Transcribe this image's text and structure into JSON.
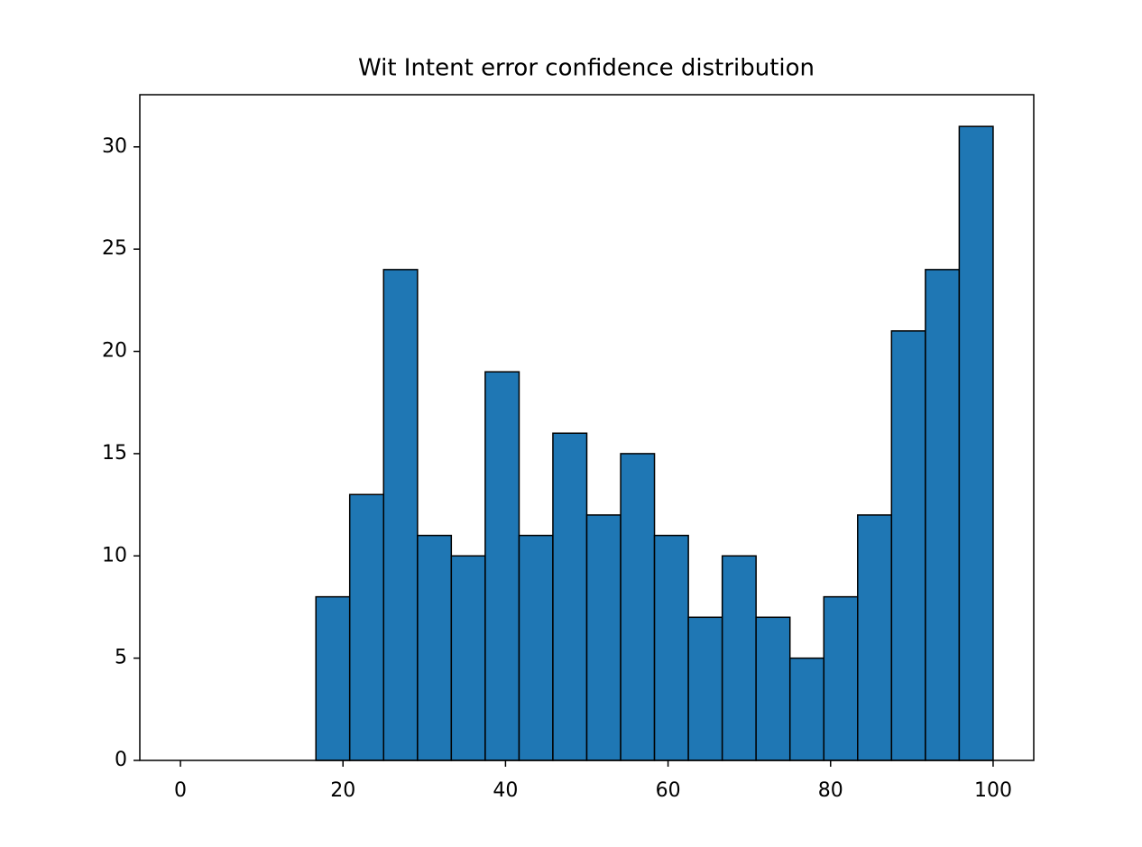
{
  "chart_data": {
    "type": "histogram",
    "title": "Wit Intent error confidence distribution",
    "bins": [
      0,
      4.17,
      8.33,
      12.5,
      16.67,
      20.83,
      25,
      29.17,
      33.33,
      37.5,
      41.67,
      45.83,
      50,
      54.17,
      58.33,
      62.5,
      66.67,
      70.83,
      75,
      79.17,
      83.33,
      87.5,
      91.67,
      95.83,
      100
    ],
    "values": [
      0,
      0,
      0,
      0,
      8,
      13,
      24,
      11,
      10,
      19,
      11,
      16,
      12,
      15,
      11,
      7,
      10,
      7,
      5,
      8,
      12,
      21,
      24,
      31
    ],
    "color": "#1f77b4",
    "edgecolor": "#000000",
    "xlim": [
      -5,
      105
    ],
    "xticks": [
      0,
      20,
      40,
      60,
      80,
      100
    ],
    "ylim": [
      0,
      32.55
    ],
    "yticks": [
      0,
      5,
      10,
      15,
      20,
      25,
      30
    ]
  }
}
